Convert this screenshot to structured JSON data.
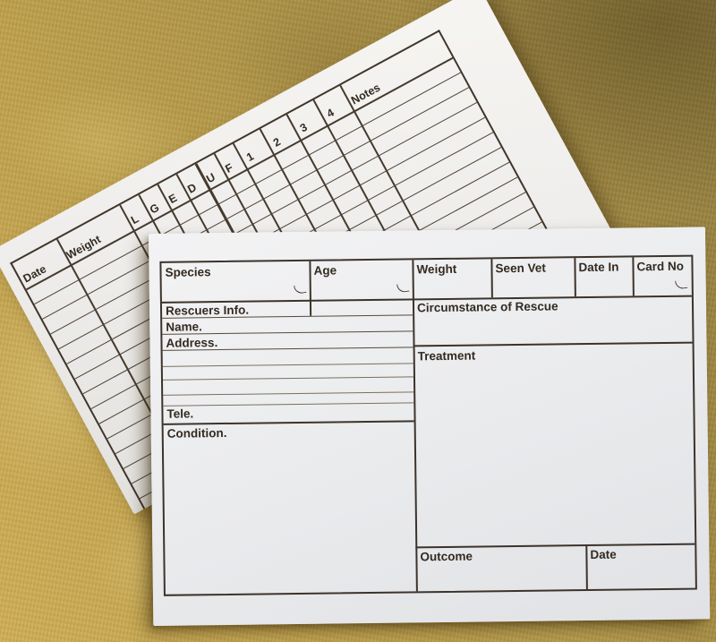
{
  "weight_log_card": {
    "columns": [
      "Date",
      "Weight",
      "L",
      "G",
      "E",
      "D",
      "U",
      "F",
      "1",
      "2",
      "3",
      "4",
      "Notes"
    ],
    "ruled_rows": 16
  },
  "record_card": {
    "header_fields": [
      "Species",
      "Age",
      "Weight",
      "Seen Vet",
      "Date In",
      "Card No"
    ],
    "rescuers_label": "Rescuers Info.",
    "circumstance_label": "Circumstance of Rescue",
    "name_label": "Name.",
    "address_label": "Address.",
    "address_blank_lines": 4,
    "tele_label": "Tele.",
    "condition_label": "Condition.",
    "treatment_label": "Treatment",
    "outcome_label": "Outcome",
    "outcome_date_label": "Date"
  },
  "colors": {
    "fabric_gold": "#b79a48",
    "fabric_highlight": "#d4b65e",
    "fabric_shadow": "#8a773c",
    "paper_white": "#ececee",
    "ink": "#372e26"
  }
}
